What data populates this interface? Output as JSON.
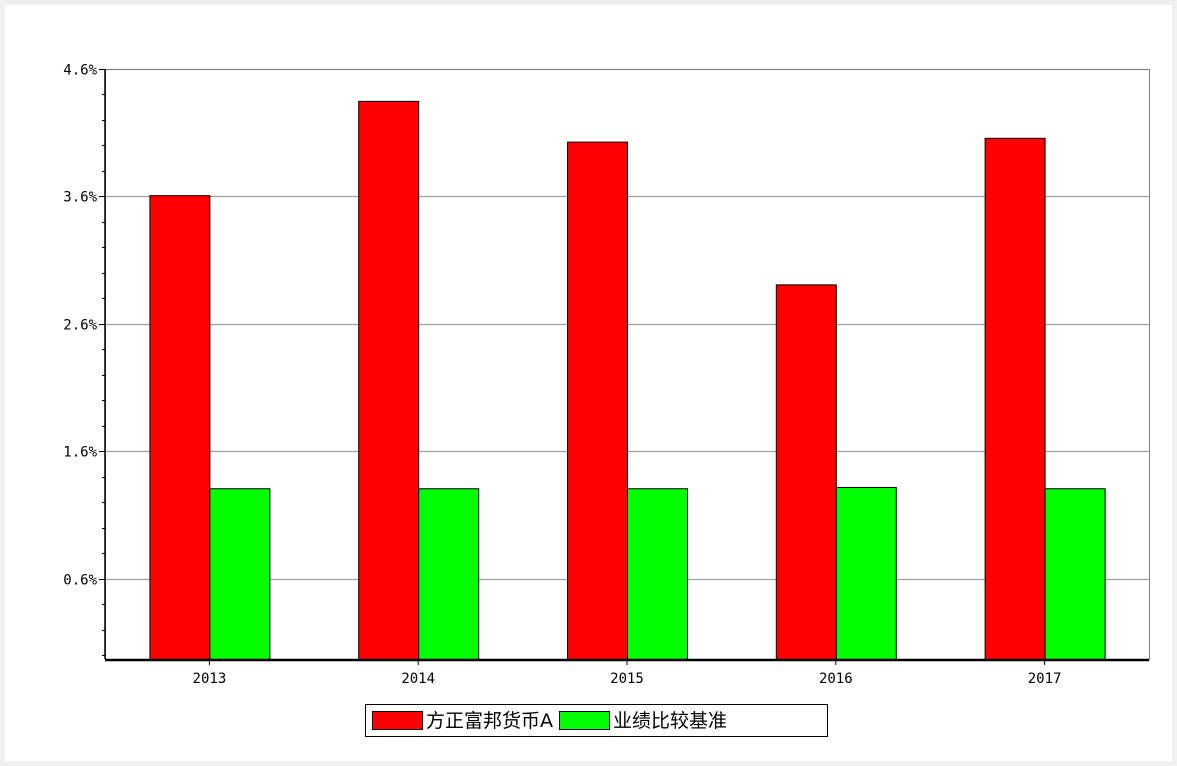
{
  "chart_data": {
    "type": "bar",
    "categories": [
      "2013",
      "2014",
      "2015",
      "2016",
      "2017"
    ],
    "series": [
      {
        "name": "方正富邦货币A",
        "color": "#ff0000",
        "values": [
          3.61,
          4.35,
          4.03,
          2.91,
          4.06
        ]
      },
      {
        "name": "业绩比较基准",
        "color": "#00ff00",
        "values": [
          1.31,
          1.31,
          1.31,
          1.32,
          1.31
        ]
      }
    ],
    "yticks": [
      "0.6%",
      "1.6%",
      "2.6%",
      "3.6%",
      "4.6%"
    ],
    "ytick_values": [
      0.6,
      1.6,
      2.6,
      3.6,
      4.6
    ],
    "ylim": [
      -0.03,
      4.6
    ],
    "grid": true,
    "legend_position": "bottom-center",
    "title": "",
    "xlabel": "",
    "ylabel": ""
  }
}
